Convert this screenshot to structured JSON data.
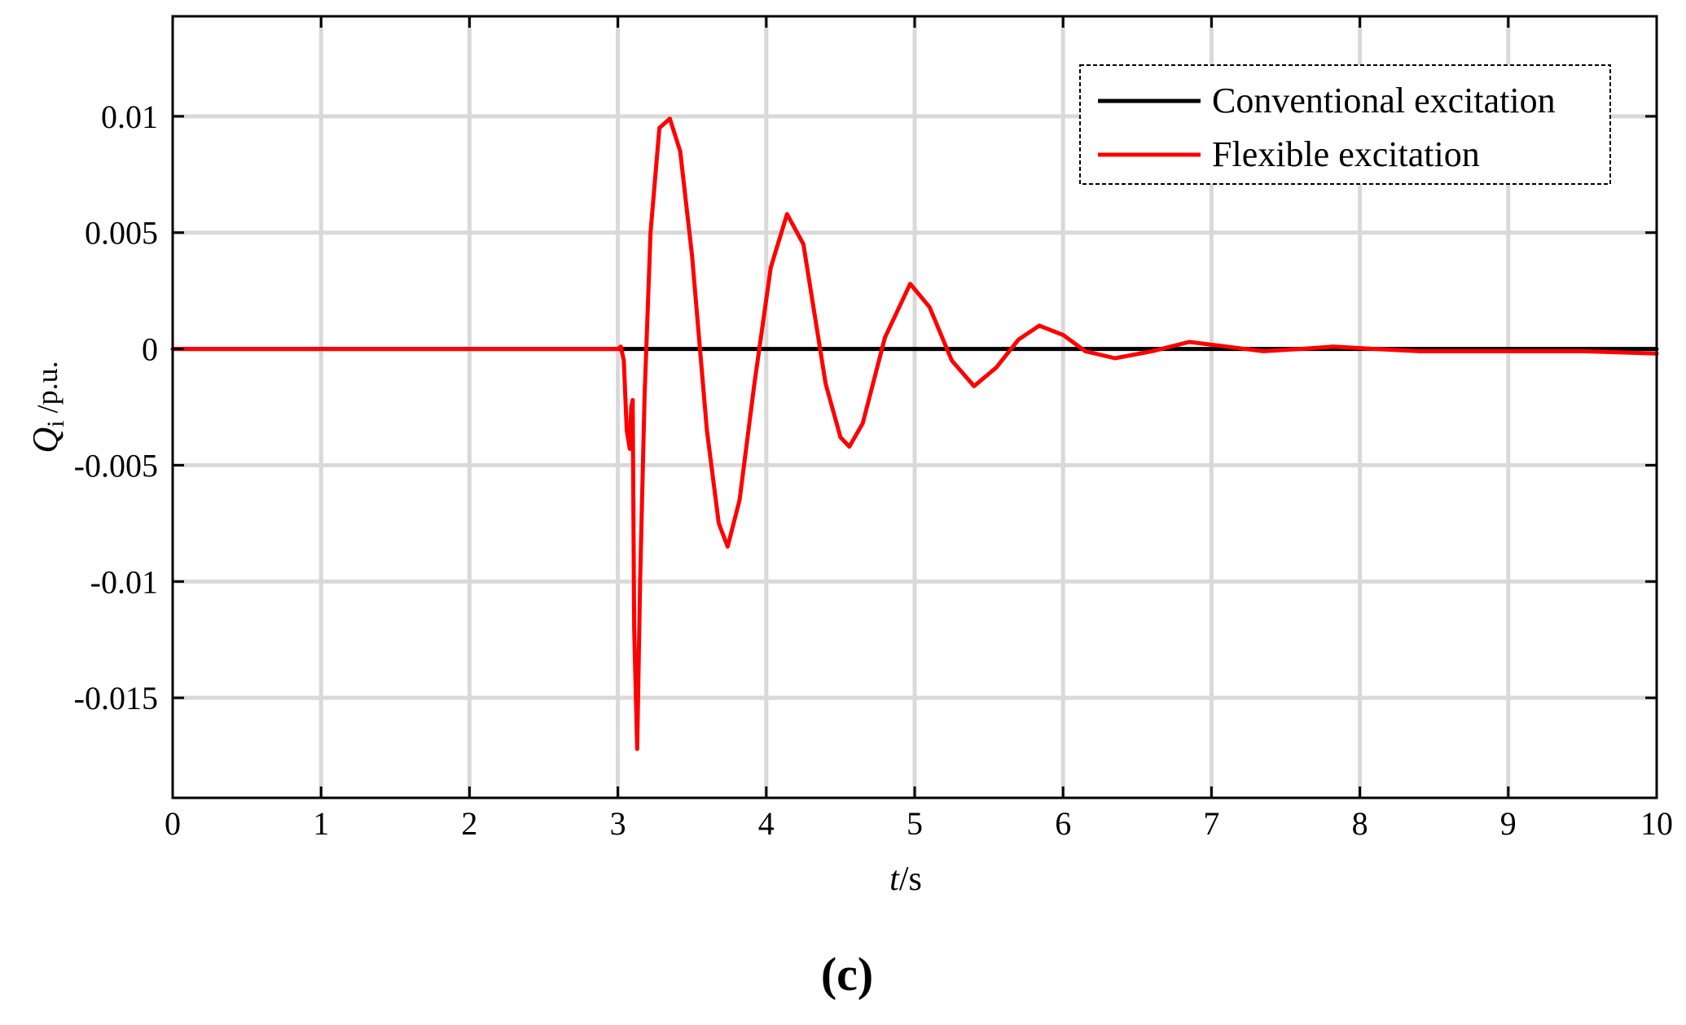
{
  "chart_data": {
    "type": "line",
    "xlabel_italic": "t",
    "xlabel_rest": "/s",
    "ylabel_italic": "Q",
    "ylabel_sub": "i",
    "ylabel_rest": " /p.u.",
    "panel_label": "(c)",
    "xlim": [
      0,
      10
    ],
    "ylim": [
      -0.0193,
      0.0143
    ],
    "x_ticks": [
      0,
      1,
      2,
      3,
      4,
      5,
      6,
      7,
      8,
      9,
      10
    ],
    "x_tick_labels": [
      "0",
      "1",
      "2",
      "3",
      "4",
      "5",
      "6",
      "7",
      "8",
      "9",
      "10"
    ],
    "y_ticks": [
      0.01,
      0.005,
      0,
      -0.005,
      -0.01,
      -0.015
    ],
    "y_tick_labels": [
      "0.01",
      "0.005",
      "0",
      "-0.005",
      "-0.01",
      "-0.015"
    ],
    "grid": true,
    "legend_position": "top-right",
    "series": [
      {
        "name": "Conventional excitation",
        "color": "#000000",
        "x": [
          0,
          10
        ],
        "y": [
          0,
          0
        ]
      },
      {
        "name": "Flexible excitation",
        "color": "#ff0000",
        "x": [
          0,
          3.0,
          3.02,
          3.04,
          3.06,
          3.08,
          3.09,
          3.1,
          3.11,
          3.13,
          3.15,
          3.18,
          3.22,
          3.28,
          3.35,
          3.42,
          3.5,
          3.6,
          3.68,
          3.74,
          3.82,
          3.92,
          4.03,
          4.14,
          4.25,
          4.4,
          4.5,
          4.56,
          4.65,
          4.8,
          4.97,
          5.1,
          5.25,
          5.4,
          5.55,
          5.7,
          5.84,
          6.0,
          6.15,
          6.35,
          6.6,
          6.85,
          7.1,
          7.35,
          7.6,
          7.82,
          8.1,
          8.4,
          8.7,
          9.0,
          9.5,
          10.0
        ],
        "y": [
          0,
          0,
          0.0001,
          -0.0005,
          -0.0035,
          -0.0043,
          -0.0025,
          -0.0022,
          -0.012,
          -0.0172,
          -0.01,
          -0.002,
          0.005,
          0.0095,
          0.0099,
          0.0085,
          0.004,
          -0.0035,
          -0.0075,
          -0.0085,
          -0.0065,
          -0.0015,
          0.0035,
          0.0058,
          0.0045,
          -0.0015,
          -0.0038,
          -0.0042,
          -0.0032,
          0.0005,
          0.0028,
          0.0018,
          -0.0005,
          -0.0016,
          -0.0008,
          0.0004,
          0.001,
          0.0006,
          -0.0001,
          -0.0004,
          -0.0001,
          0.0003,
          0.0001,
          -0.0001,
          0.0,
          0.0001,
          0.0,
          -0.0001,
          -0.0001,
          -0.0001,
          -0.0001,
          -0.0002
        ]
      }
    ]
  }
}
